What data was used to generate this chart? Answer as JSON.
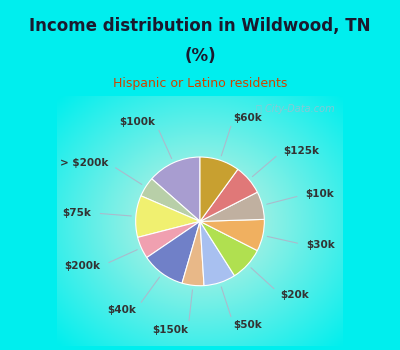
{
  "title_line1": "Income distribution in Wildwood, TN",
  "title_line2": "(%)",
  "subtitle": "Hispanic or Latino residents",
  "title_color": "#1a1a2e",
  "subtitle_color": "#cc4400",
  "bg_color": "#00eeee",
  "chart_bg": "#c8ecd8",
  "watermark": "ⓘ City-Data.com",
  "labels": [
    "$100k",
    "> $200k",
    "$75k",
    "$200k",
    "$40k",
    "$150k",
    "$50k",
    "$20k",
    "$30k",
    "$10k",
    "$125k",
    "$60k"
  ],
  "values": [
    13.5,
    5.0,
    10.5,
    5.5,
    11.0,
    5.5,
    8.0,
    8.5,
    8.0,
    7.0,
    7.5,
    10.0
  ],
  "colors": [
    "#a89dd0",
    "#b8cfa8",
    "#f0f070",
    "#f0a0b0",
    "#7080c8",
    "#e8b888",
    "#a8c0f0",
    "#b0e050",
    "#f0b060",
    "#c0b0a0",
    "#e07878",
    "#c8a030"
  ],
  "label_colors": [
    "#555599",
    "#557755",
    "#888800",
    "#996688",
    "#334488",
    "#996644",
    "#446688",
    "#557722",
    "#885522",
    "#776655",
    "#994444",
    "#886600"
  ]
}
